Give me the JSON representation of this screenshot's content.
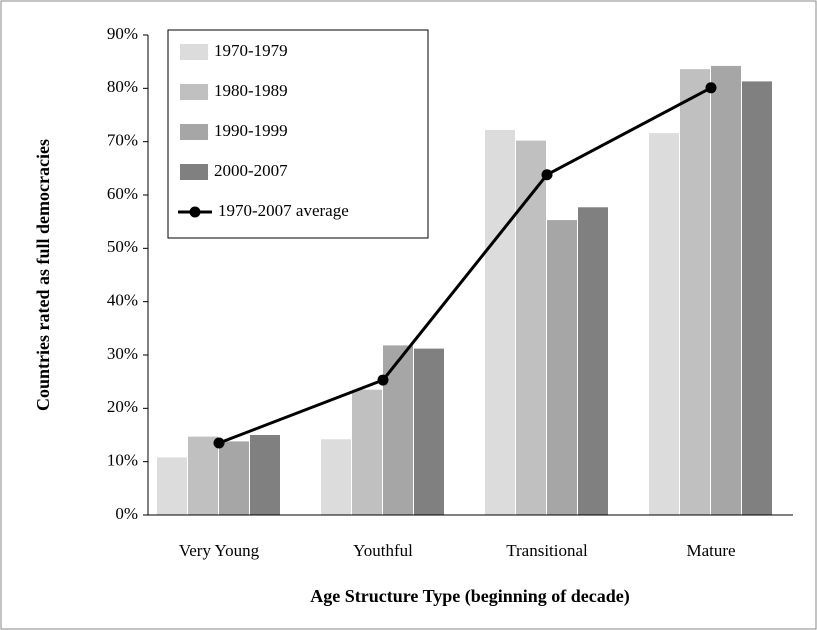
{
  "chart_data": {
    "type": "bar",
    "categories": [
      "Very Young",
      "Youthful",
      "Transitional",
      "Mature"
    ],
    "series": [
      {
        "name": "1970-1979",
        "color": "#dcdcdc",
        "values": [
          10.8,
          14.2,
          72.2,
          71.6
        ]
      },
      {
        "name": "1980-1989",
        "color": "#c0c0c0",
        "values": [
          14.7,
          23.5,
          70.2,
          83.6
        ]
      },
      {
        "name": "1990-1999",
        "color": "#a6a6a6",
        "values": [
          13.8,
          31.8,
          55.3,
          84.2
        ]
      },
      {
        "name": "2000-2007",
        "color": "#808080",
        "values": [
          15.0,
          31.2,
          57.7,
          81.3
        ]
      }
    ],
    "line": {
      "name": "1970-2007 average",
      "color": "#000000",
      "values": [
        13.5,
        25.3,
        63.8,
        80.1
      ]
    },
    "ylabel": "Countries rated as full democracies",
    "xlabel": "Age Structure Type (beginning of decade)",
    "ylim": [
      0,
      90
    ],
    "yticks": [
      {
        "value": 0,
        "label": "0%"
      },
      {
        "value": 10,
        "label": "10%"
      },
      {
        "value": 20,
        "label": "20%"
      },
      {
        "value": 30,
        "label": "30%"
      },
      {
        "value": 40,
        "label": "40%"
      },
      {
        "value": 50,
        "label": "50%"
      },
      {
        "value": 60,
        "label": "60%"
      },
      {
        "value": 70,
        "label": "70%"
      },
      {
        "value": 80,
        "label": "80%"
      },
      {
        "value": 90,
        "label": "90%"
      }
    ],
    "legend": "upper left"
  }
}
